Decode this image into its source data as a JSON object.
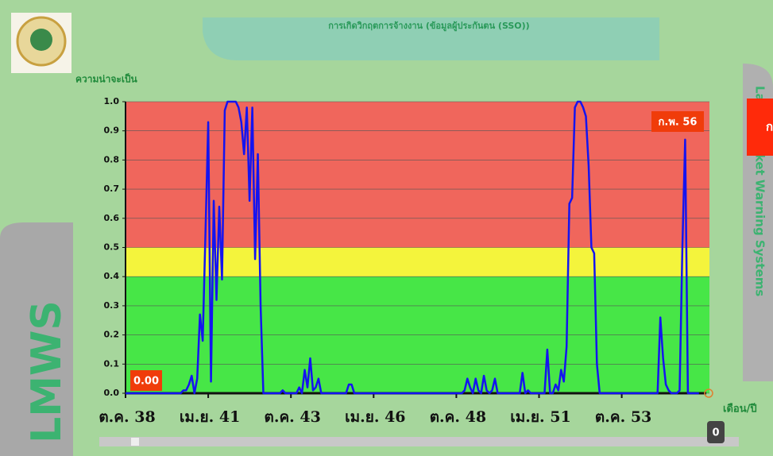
{
  "chart_data": {
    "type": "line",
    "title": "การเกิดวิกฤตการจ้างงาน (ข้อมูลผู้ประกันตน (SSO))",
    "ylabel": "ความน่าจะเป็น",
    "xlabel": "เดือน/ปี",
    "brand": "LMWS",
    "side_title": "Labor Market Warning Systems",
    "button_label": "ก",
    "annotations": [
      "ก.พ. 56",
      "0.00",
      "0"
    ],
    "color": "#1414f0",
    "bands": [
      {
        "from": 0,
        "to": 0.4,
        "color": "#47e647"
      },
      {
        "from": 0.4,
        "to": 0.5,
        "color": "#f4f43c"
      },
      {
        "from": 0.5,
        "to": 1,
        "color": "#f0665c"
      }
    ],
    "ylim": [
      0,
      1
    ],
    "yticks": [
      {
        "value": 0,
        "label": "0.0"
      },
      0.1,
      0.2,
      0.3,
      0.4,
      0.5,
      0.6,
      0.7,
      0.8,
      0.9,
      {
        "value": 1,
        "label": "1.0"
      }
    ],
    "grid": true,
    "categories": [
      "ต.ค. 38",
      null,
      null,
      null,
      null,
      null,
      null,
      null,
      null,
      null,
      null,
      null,
      null,
      null,
      null,
      null,
      null,
      null,
      null,
      null,
      null,
      null,
      null,
      null,
      null,
      null,
      null,
      null,
      null,
      null,
      "เม.ย. 41",
      null,
      null,
      null,
      null,
      null,
      null,
      null,
      null,
      null,
      null,
      null,
      null,
      null,
      null,
      null,
      null,
      null,
      null,
      null,
      null,
      null,
      null,
      null,
      null,
      null,
      null,
      null,
      null,
      null,
      "ต.ค. 43",
      null,
      null,
      null,
      null,
      null,
      null,
      null,
      null,
      null,
      null,
      null,
      null,
      null,
      null,
      null,
      null,
      null,
      null,
      null,
      null,
      null,
      null,
      null,
      null,
      null,
      null,
      null,
      null,
      null,
      "เม.ย. 46",
      null,
      null,
      null,
      null,
      null,
      null,
      null,
      null,
      null,
      null,
      null,
      null,
      null,
      null,
      null,
      null,
      null,
      null,
      null,
      null,
      null,
      null,
      null,
      null,
      null,
      null,
      null,
      null,
      null,
      "ต.ค. 48",
      null,
      null,
      null,
      null,
      null,
      null,
      null,
      null,
      null,
      null,
      null,
      null,
      null,
      null,
      null,
      null,
      null,
      null,
      null,
      null,
      null,
      null,
      null,
      null,
      null,
      null,
      null,
      null,
      null,
      "เม.ย. 51",
      null,
      null,
      null,
      null,
      null,
      null,
      null,
      null,
      null,
      null,
      null,
      null,
      null,
      null,
      null,
      null,
      null,
      null,
      null,
      null,
      null,
      null,
      null,
      null,
      null,
      null,
      null,
      null,
      null,
      "ต.ค. 53",
      null,
      null,
      null,
      null,
      null,
      null,
      null,
      null,
      null,
      null,
      null,
      null,
      null,
      null,
      null,
      null,
      null,
      null,
      null,
      null,
      null,
      null,
      null,
      null,
      null,
      null,
      null,
      null
    ],
    "values": [
      0,
      0,
      0,
      0,
      0,
      0,
      0,
      0,
      0,
      0,
      0,
      0,
      0,
      0,
      0,
      0,
      0,
      0,
      0,
      0,
      0,
      0.01,
      0.01,
      0.03,
      0.06,
      0,
      0.05,
      0.27,
      0.18,
      0.55,
      0.93,
      0.04,
      0.66,
      0.32,
      0.64,
      0.39,
      0.97,
      1,
      1,
      1,
      1,
      0.98,
      0.93,
      0.82,
      0.98,
      0.66,
      0.98,
      0.46,
      0.82,
      0.3,
      0,
      0,
      0,
      0,
      0,
      0,
      0,
      0.01,
      0,
      0,
      0,
      0,
      0,
      0.02,
      0,
      0.08,
      0.02,
      0.12,
      0.01,
      0.02,
      0.05,
      0,
      0,
      0,
      0,
      0,
      0,
      0,
      0,
      0,
      0,
      0.03,
      0.03,
      0,
      0,
      0,
      0,
      0,
      0,
      0,
      0,
      0,
      0,
      0,
      0,
      0,
      0,
      0,
      0,
      0,
      0,
      0,
      0,
      0,
      0,
      0,
      0,
      0,
      0,
      0,
      0,
      0,
      0,
      0,
      0,
      0,
      0,
      0,
      0,
      0,
      0,
      0,
      0,
      0.01,
      0.05,
      0.02,
      0,
      0.05,
      0.01,
      0,
      0.06,
      0.01,
      0,
      0.01,
      0.05,
      0,
      0,
      0,
      0,
      0,
      0,
      0,
      0,
      0,
      0.07,
      0,
      0.01,
      0,
      0,
      0,
      0,
      0,
      0,
      0.15,
      0,
      0,
      0.03,
      0.01,
      0.08,
      0.04,
      0.16,
      0.65,
      0.67,
      0.98,
      1,
      1,
      0.98,
      0.95,
      0.78,
      0.5,
      0.48,
      0.1,
      0,
      0,
      0,
      0,
      0,
      0,
      0,
      0,
      0,
      0,
      0,
      0,
      0,
      0,
      0,
      0,
      0,
      0,
      0,
      0,
      0,
      0,
      0.26,
      0.12,
      0.03,
      0.01,
      0,
      0,
      0,
      0.01,
      0.5,
      0.87,
      0,
      0,
      0,
      0,
      0
    ]
  }
}
